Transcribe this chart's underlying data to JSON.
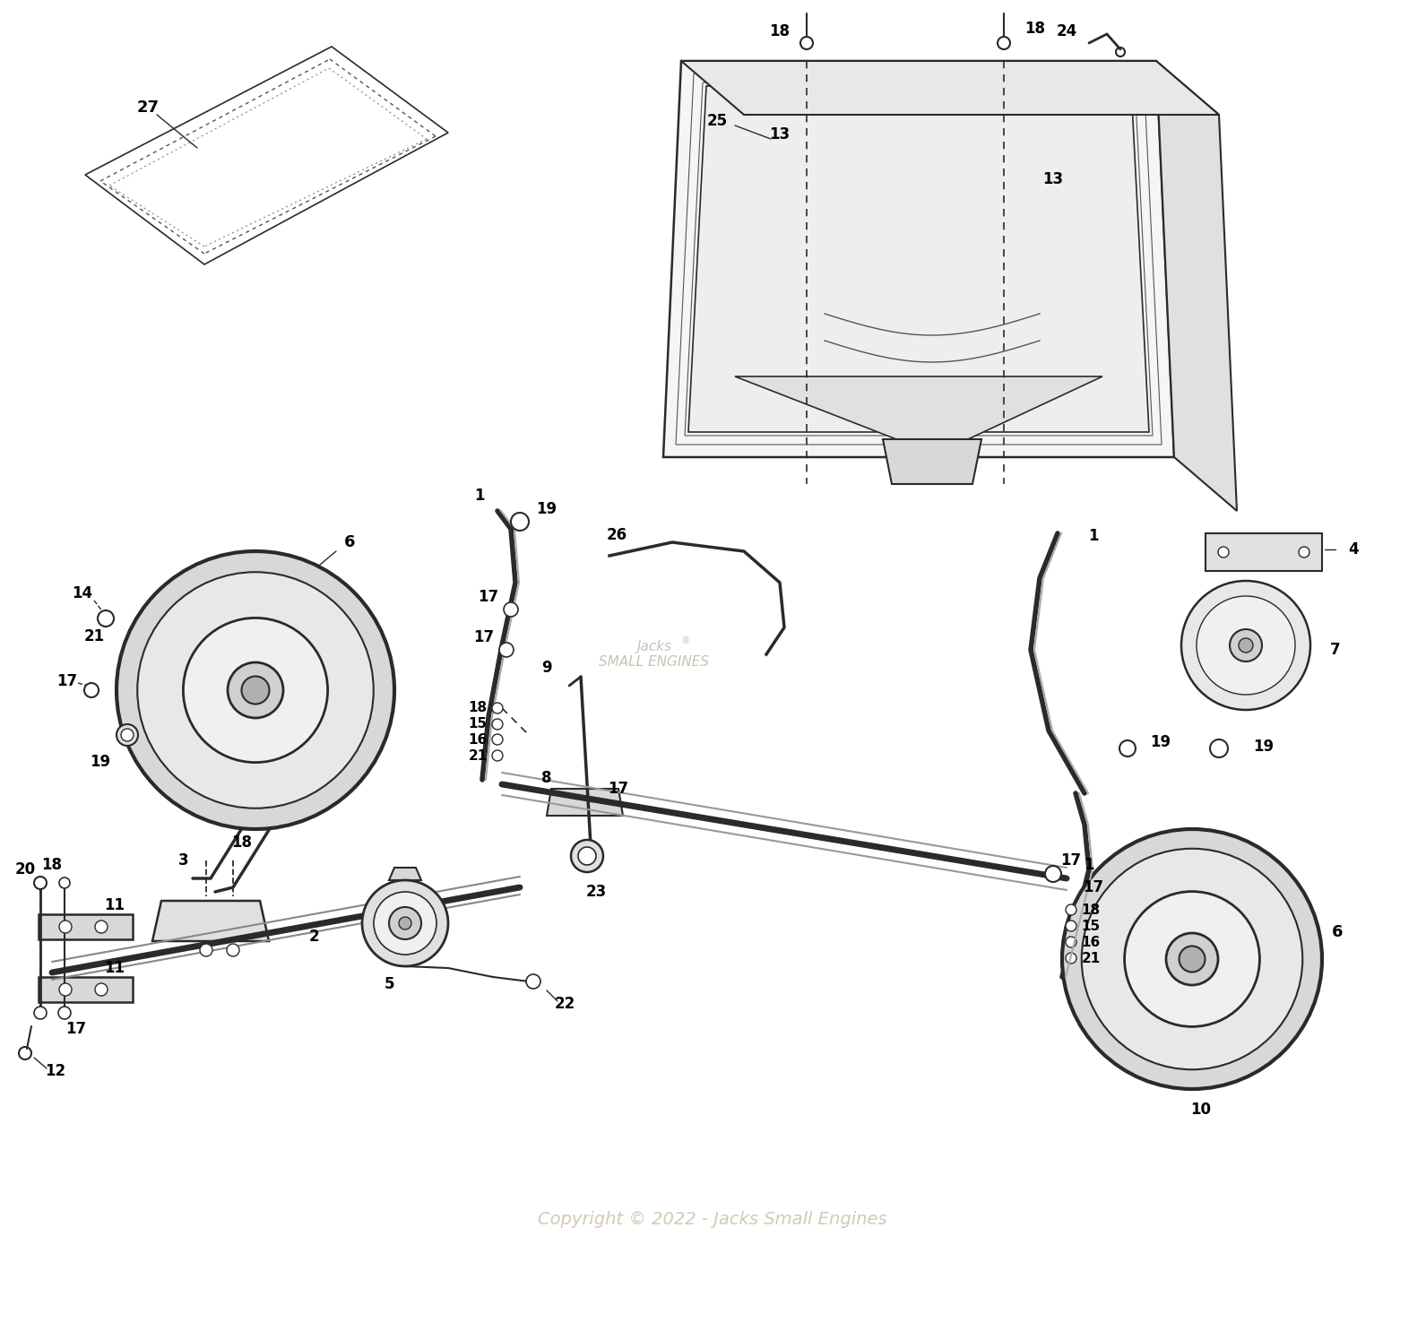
{
  "background_color": "#ffffff",
  "copyright_text": "Copyright © 2022 - Jacks Small Engines",
  "copyright_color": "#d0c8b0",
  "figsize": [
    15.91,
    14.95
  ],
  "dpi": 100,
  "line_color": "#2a2a2a",
  "label_fontsize": 13
}
